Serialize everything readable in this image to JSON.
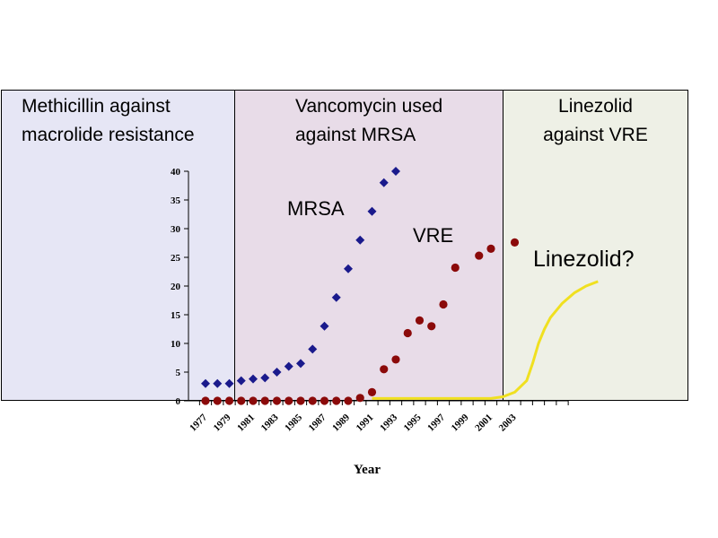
{
  "chart_data": {
    "type": "scatter",
    "xlabel": "Year",
    "ylabel": "",
    "ylim": [
      0,
      40
    ],
    "y_ticks": [
      0,
      5,
      10,
      15,
      20,
      25,
      30,
      35,
      40
    ],
    "x_tick_labels": [
      "1977",
      "1979",
      "1981",
      "1983",
      "1985",
      "1987",
      "1989",
      "1991",
      "1993",
      "1995",
      "1997",
      "1999",
      "2001",
      "2003"
    ],
    "eras": [
      {
        "label_line1": "Methicillin against",
        "label_line2": "macrolide resistance",
        "start": 1975.5,
        "end": 1979.5,
        "color": "#e6e6f5"
      },
      {
        "label_line1": "Vancomycin used",
        "label_line2": "against MRSA",
        "start": 1979.5,
        "end": 2001.5,
        "color": "#e8dce8"
      },
      {
        "label_line1": "Linezolid",
        "label_line2": "against VRE",
        "start": 2001.5,
        "end": 2007.5,
        "color": "#eef0e6"
      }
    ],
    "series": [
      {
        "name": "MRSA",
        "marker": "diamond",
        "color": "#1a1a8c",
        "x": [
          1977,
          1978,
          1979,
          1980,
          1981,
          1982,
          1983,
          1984,
          1985,
          1986,
          1987,
          1988,
          1989,
          1990,
          1991,
          1992,
          1993
        ],
        "values": [
          3,
          3,
          3,
          3.5,
          3.8,
          4,
          5,
          6,
          6.5,
          9,
          13,
          18,
          23,
          28,
          33,
          38,
          40
        ]
      },
      {
        "name": "VRE",
        "marker": "circle",
        "color": "#8b0a0a",
        "x": [
          1977,
          1978,
          1979,
          1980,
          1981,
          1982,
          1983,
          1984,
          1985,
          1986,
          1987,
          1988,
          1989,
          1990,
          1991,
          1992,
          1993,
          1994,
          1995,
          1996,
          1997,
          1998,
          2000,
          2001,
          2003
        ],
        "values": [
          0,
          0,
          0,
          0,
          0,
          0,
          0,
          0,
          0,
          0,
          0,
          0,
          0,
          0.5,
          1.5,
          5.5,
          7.2,
          11.8,
          14,
          13,
          16.8,
          23.2,
          25.3,
          26.5,
          27.6
        ]
      },
      {
        "name": "Linezolid?",
        "marker": "line",
        "color": "#f0e020",
        "x": [
          1991,
          1993,
          1995,
          1997,
          1999,
          2001,
          2002,
          2003,
          2004,
          2004.5,
          2005,
          2005.5,
          2006,
          2007,
          2008,
          2009,
          2010
        ],
        "values": [
          0.4,
          0.4,
          0.4,
          0.4,
          0.4,
          0.4,
          0.7,
          1.5,
          3.5,
          6.5,
          10,
          12.5,
          14.5,
          17,
          18.8,
          20,
          20.8
        ]
      }
    ],
    "annotation": "Linezolid?"
  }
}
